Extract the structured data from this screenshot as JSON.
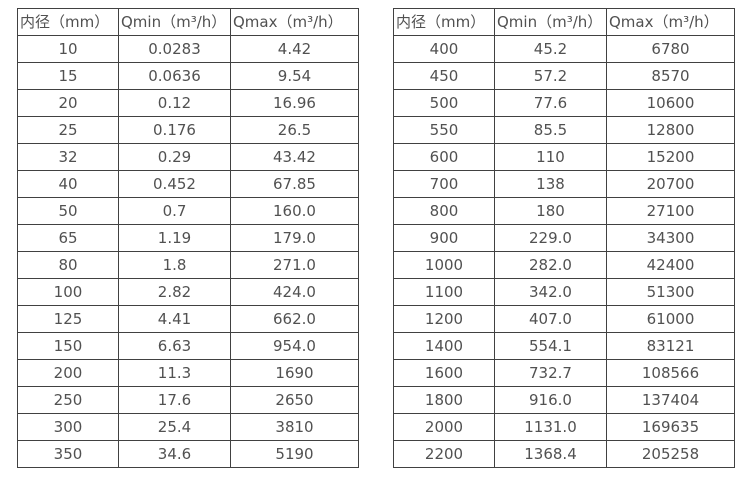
{
  "tables": [
    {
      "name": "small-diameter-flow-spec",
      "headers": [
        "内径（mm）",
        "Qmin（m³/h）",
        "Qmax（m³/h）"
      ],
      "rows": [
        [
          "10",
          "0.0283",
          "4.42"
        ],
        [
          "15",
          "0.0636",
          "9.54"
        ],
        [
          "20",
          "0.12",
          "16.96"
        ],
        [
          "25",
          "0.176",
          "26.5"
        ],
        [
          "32",
          "0.29",
          "43.42"
        ],
        [
          "40",
          "0.452",
          "67.85"
        ],
        [
          "50",
          "0.7",
          "160.0"
        ],
        [
          "65",
          "1.19",
          "179.0"
        ],
        [
          "80",
          "1.8",
          "271.0"
        ],
        [
          "100",
          "2.82",
          "424.0"
        ],
        [
          "125",
          "4.41",
          "662.0"
        ],
        [
          "150",
          "6.63",
          "954.0"
        ],
        [
          "200",
          "11.3",
          "1690"
        ],
        [
          "250",
          "17.6",
          "2650"
        ],
        [
          "300",
          "25.4",
          "3810"
        ],
        [
          "350",
          "34.6",
          "5190"
        ]
      ]
    },
    {
      "name": "large-diameter-flow-spec",
      "headers": [
        "内径（mm）",
        "Qmin（m³/h）",
        "Qmax（m³/h）"
      ],
      "rows": [
        [
          "400",
          "45.2",
          "6780"
        ],
        [
          "450",
          "57.2",
          "8570"
        ],
        [
          "500",
          "77.6",
          "10600"
        ],
        [
          "550",
          "85.5",
          "12800"
        ],
        [
          "600",
          "110",
          "15200"
        ],
        [
          "700",
          "138",
          "20700"
        ],
        [
          "800",
          "180",
          "27100"
        ],
        [
          "900",
          "229.0",
          "34300"
        ],
        [
          "1000",
          "282.0",
          "42400"
        ],
        [
          "1100",
          "342.0",
          "51300"
        ],
        [
          "1200",
          "407.0",
          "61000"
        ],
        [
          "1400",
          "554.1",
          "83121"
        ],
        [
          "1600",
          "732.7",
          "108566"
        ],
        [
          "1800",
          "916.0",
          "137404"
        ],
        [
          "2000",
          "1131.0",
          "169635"
        ],
        [
          "2200",
          "1368.4",
          "205258"
        ]
      ]
    }
  ],
  "colors": {
    "border": "#414141",
    "text": "#515151",
    "background": "#ffffff"
  }
}
